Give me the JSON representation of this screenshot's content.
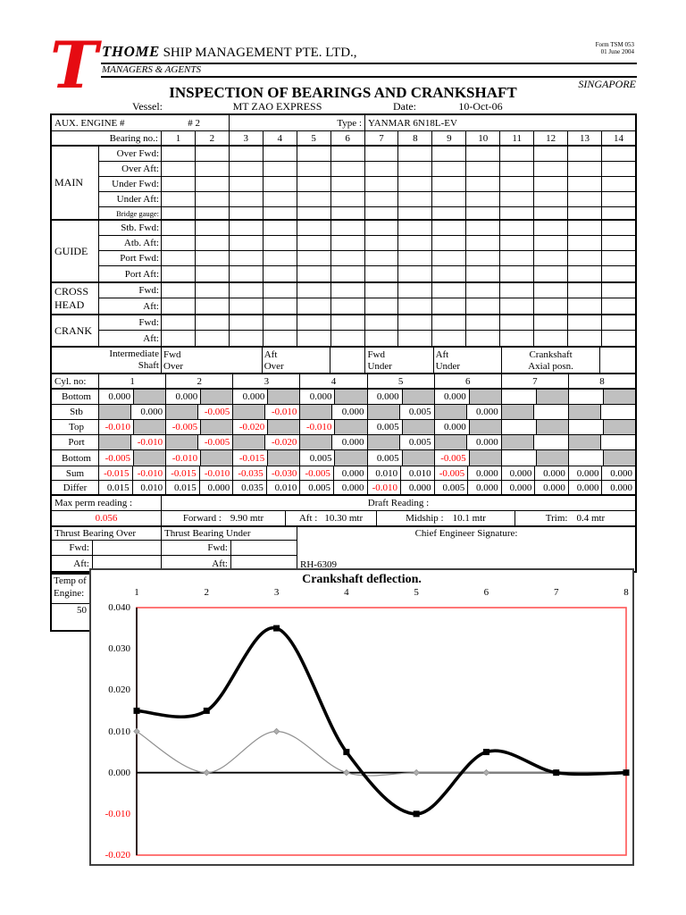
{
  "colors": {
    "accent_red": "#ff0000",
    "cell_gray": "#c0c0c0",
    "chart_border_red": "#ff5555",
    "series_black": "#000000",
    "series_gray": "#909090"
  },
  "header": {
    "logo_letter": "T",
    "company_bold": "THOME",
    "company_rest": " SHIP MANAGEMENT PTE. LTD.,",
    "form_no": "Form TSM 053",
    "form_date": "01 June 2004",
    "managers": "MANAGERS & AGENTS",
    "country": "SINGAPORE",
    "title": "INSPECTION OF BEARINGS AND CRANKSHAFT",
    "vessel_label": "Vessel:",
    "vessel": "MT ZAO EXPRESS",
    "date_label": "Date:",
    "date": "10-Oct-06"
  },
  "engine": {
    "label": "AUX. ENGINE #",
    "number": "# 2",
    "type_label": "Type :",
    "type_value": "YANMAR 6N18L-EV"
  },
  "bearing_table": {
    "bearing_no_label": "Bearing no.:",
    "columns": [
      "1",
      "2",
      "3",
      "4",
      "5",
      "6",
      "7",
      "8",
      "9",
      "10",
      "11",
      "12",
      "13",
      "14"
    ],
    "groups": [
      {
        "name": "MAIN",
        "rows": [
          "Over Fwd:",
          "Over Aft:",
          "Under Fwd:",
          "Under Aft:",
          "Bridge gauge:"
        ]
      },
      {
        "name": "GUIDE",
        "rows": [
          "Stb. Fwd:",
          "Atb. Aft:",
          "Port Fwd:",
          "Port Aft:"
        ]
      },
      {
        "name": "CROSS HEAD",
        "rows": [
          "Fwd:",
          "Aft:"
        ]
      },
      {
        "name": "CRANK",
        "rows": [
          "Fwd:",
          "Aft:"
        ]
      }
    ]
  },
  "intermediate": {
    "label1": "Intermediate",
    "label2": "Shaft",
    "cells": [
      {
        "l1": "Fwd",
        "l2": "Over",
        "span": 3
      },
      {
        "l1": "Aft",
        "l2": "Over",
        "span": 2
      },
      {
        "l1": "",
        "l2": "",
        "span": 1
      },
      {
        "l1": "Fwd",
        "l2": "Under",
        "span": 2
      },
      {
        "l1": "Aft",
        "l2": "Under",
        "span": 2
      },
      {
        "l1": "Crankshaft",
        "l2": "Axial posn.",
        "span": 3
      },
      {
        "l1": "",
        "l2": "",
        "span": 1
      }
    ]
  },
  "cyl": {
    "cyl_label": "Cyl. no:",
    "cylinders": [
      "1",
      "2",
      "3",
      "4",
      "5",
      "6",
      "7",
      "8"
    ],
    "rows": [
      {
        "label": "Bottom",
        "pos": "first",
        "values": [
          "0.000",
          "0.000",
          "0.000",
          "0.000",
          "0.000",
          "0.000",
          "",
          ""
        ]
      },
      {
        "label": "Stb",
        "pos": "second",
        "values": [
          "0.000",
          "-0.005",
          "-0.010",
          "0.000",
          "0.005",
          "0.000",
          "",
          ""
        ]
      },
      {
        "label": "Top",
        "pos": "first",
        "values": [
          "-0.010",
          "-0.005",
          "-0.020",
          "-0.010",
          "0.005",
          "0.000",
          "",
          ""
        ]
      },
      {
        "label": "Port",
        "pos": "second",
        "values": [
          "-0.010",
          "-0.005",
          "-0.020",
          "0.000",
          "0.005",
          "0.000",
          "",
          ""
        ]
      },
      {
        "label": "Bottom",
        "pos": "first",
        "values": [
          "-0.005",
          "-0.010",
          "-0.015",
          "0.005",
          "0.005",
          "-0.005",
          "",
          ""
        ]
      }
    ],
    "sum_label": "Sum",
    "sum_values": [
      "-0.015",
      "-0.010",
      "-0.015",
      "-0.010",
      "-0.035",
      "-0.030",
      "-0.005",
      "0.000",
      "0.010",
      "0.010",
      "-0.005",
      "0.000",
      "0.000",
      "0.000",
      "0.000",
      "0.000"
    ],
    "differ_label": "Differ",
    "differ_values": [
      "0.015",
      "0.010",
      "0.015",
      "0.000",
      "0.035",
      "0.010",
      "0.005",
      "0.000",
      "-0.010",
      "0.000",
      "0.005",
      "0.000",
      "0.000",
      "0.000",
      "0.000",
      "0.000"
    ]
  },
  "footer": {
    "max_perm_label": "Max perm reading :",
    "max_perm_value": "0.056",
    "draft_label": "Draft Reading :",
    "forward_label": "Forward :",
    "forward_value": "9.90  mtr",
    "aft_label": "Aft :",
    "aft_value": "10.30  mtr",
    "midship_label": "Midship :",
    "midship_value": "10.1  mtr",
    "trim_label": "Trim:",
    "trim_value": "0.4  mtr",
    "thrust_over_label": "Thrust Bearing Over",
    "thrust_under_label": "Thrust Bearing Under",
    "fwd_label": "Fwd:",
    "aft_label2": "Aft:",
    "signature_label": "Chief Engineer Signature:",
    "signature_value": "RH-6309"
  },
  "temp_box": {
    "line1": "Temp of",
    "line2": "Engine:",
    "value": "50"
  },
  "chart_data": {
    "type": "line",
    "title": "Crankshaft deflection.",
    "x": [
      1,
      2,
      3,
      4,
      5,
      6,
      7,
      8
    ],
    "series": [
      {
        "name": "thick-black",
        "values": [
          0.015,
          0.015,
          0.035,
          0.005,
          -0.01,
          0.005,
          0.0,
          0.0
        ],
        "color": "#000000",
        "width": 3.6,
        "marker": "square"
      },
      {
        "name": "thin-gray",
        "values": [
          0.01,
          0.0,
          0.01,
          0.0,
          0.0,
          0.0,
          0.0,
          0.0
        ],
        "color": "#909090",
        "width": 1.2,
        "marker": "diamond"
      }
    ],
    "ylim": [
      -0.02,
      0.04
    ],
    "yticks": [
      "0.040",
      "0.030",
      "0.020",
      "0.010",
      "0.000",
      "-0.010",
      "-0.020"
    ],
    "x_axis_position": "top",
    "grid": false,
    "legend": "none",
    "plot_border_color": "#ff5555",
    "negative_tick_color": "#ff0000"
  }
}
